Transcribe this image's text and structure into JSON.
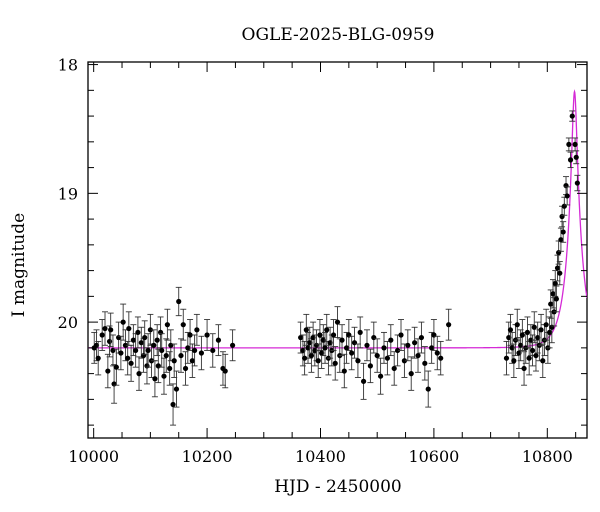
{
  "chart_data": {
    "type": "scatter",
    "title": "OGLE-2025-BLG-0959",
    "xlabel": "HJD - 2450000",
    "ylabel": "I magnitude",
    "xlim": [
      9990,
      10870
    ],
    "ylim": [
      20.9,
      17.98
    ],
    "y_inverted": true,
    "grid": false,
    "x_ticks": [
      10000,
      10200,
      10400,
      10600,
      10800
    ],
    "x_tick_labels": [
      "10000",
      "10200",
      "10400",
      "10600",
      "10800"
    ],
    "y_ticks": [
      18,
      19,
      20
    ],
    "y_tick_labels": [
      "18",
      "19",
      "20"
    ],
    "colors": {
      "data": "#000000",
      "errorbar": "#333333",
      "model": "#d52ad6"
    },
    "model": {
      "baseline": 20.2,
      "peak_time": 10848,
      "peak_mag": 18.21,
      "tE": 25
    },
    "series": [
      {
        "points": [
          [
            10001,
            20.2,
            0.12
          ],
          [
            10005,
            20.18,
            0.12
          ],
          [
            10008,
            20.28,
            0.13
          ],
          [
            10015,
            20.1,
            0.12
          ],
          [
            10020,
            20.05,
            0.13
          ],
          [
            10025,
            20.38,
            0.13
          ],
          [
            10028,
            20.15,
            0.12
          ],
          [
            10030,
            20.06,
            0.13
          ],
          [
            10034,
            20.22,
            0.12
          ],
          [
            10036,
            20.48,
            0.15
          ],
          [
            10040,
            20.35,
            0.14
          ],
          [
            10044,
            20.12,
            0.12
          ],
          [
            10048,
            20.24,
            0.13
          ],
          [
            10052,
            20.0,
            0.14
          ],
          [
            10056,
            20.18,
            0.12
          ],
          [
            10060,
            20.28,
            0.13
          ],
          [
            10062,
            20.05,
            0.13
          ],
          [
            10066,
            20.32,
            0.14
          ],
          [
            10070,
            20.14,
            0.12
          ],
          [
            10074,
            20.22,
            0.13
          ],
          [
            10078,
            20.08,
            0.12
          ],
          [
            10080,
            20.4,
            0.13
          ],
          [
            10084,
            20.16,
            0.12
          ],
          [
            10088,
            20.26,
            0.13
          ],
          [
            10090,
            20.12,
            0.13
          ],
          [
            10094,
            20.34,
            0.14
          ],
          [
            10096,
            20.22,
            0.13
          ],
          [
            10100,
            20.06,
            0.12
          ],
          [
            10102,
            20.3,
            0.13
          ],
          [
            10106,
            20.18,
            0.12
          ],
          [
            10108,
            20.44,
            0.14
          ],
          [
            10112,
            20.14,
            0.12
          ],
          [
            10114,
            20.34,
            0.13
          ],
          [
            10118,
            20.08,
            0.12
          ],
          [
            10120,
            20.22,
            0.13
          ],
          [
            10124,
            20.42,
            0.14
          ],
          [
            10128,
            20.26,
            0.13
          ],
          [
            10130,
            20.02,
            0.12
          ],
          [
            10134,
            20.36,
            0.13
          ],
          [
            10136,
            20.18,
            0.12
          ],
          [
            10140,
            20.64,
            0.16
          ],
          [
            10142,
            20.3,
            0.13
          ],
          [
            10146,
            20.52,
            0.14
          ],
          [
            10150,
            19.84,
            0.11
          ],
          [
            10154,
            20.26,
            0.13
          ],
          [
            10158,
            20.02,
            0.12
          ],
          [
            10162,
            20.36,
            0.13
          ],
          [
            10166,
            20.2,
            0.12
          ],
          [
            10170,
            20.1,
            0.12
          ],
          [
            10174,
            20.3,
            0.13
          ],
          [
            10178,
            20.22,
            0.12
          ],
          [
            10182,
            20.06,
            0.12
          ],
          [
            10190,
            20.24,
            0.13
          ],
          [
            10200,
            20.1,
            0.12
          ],
          [
            10210,
            20.22,
            0.13
          ],
          [
            10220,
            20.14,
            0.12
          ],
          [
            10228,
            20.36,
            0.13
          ],
          [
            10232,
            20.38,
            0.13
          ],
          [
            10245,
            20.18,
            0.12
          ],
          [
            10365,
            20.12,
            0.12
          ],
          [
            10369,
            20.22,
            0.12
          ],
          [
            10372,
            20.28,
            0.13
          ],
          [
            10375,
            20.06,
            0.12
          ],
          [
            10378,
            20.2,
            0.12
          ],
          [
            10381,
            20.16,
            0.12
          ],
          [
            10384,
            20.26,
            0.13
          ],
          [
            10387,
            20.12,
            0.12
          ],
          [
            10390,
            20.22,
            0.12
          ],
          [
            10393,
            20.18,
            0.12
          ],
          [
            10396,
            20.3,
            0.13
          ],
          [
            10399,
            20.1,
            0.12
          ],
          [
            10402,
            20.24,
            0.12
          ],
          [
            10405,
            20.14,
            0.12
          ],
          [
            10408,
            20.2,
            0.12
          ],
          [
            10411,
            20.06,
            0.12
          ],
          [
            10414,
            20.28,
            0.13
          ],
          [
            10417,
            20.16,
            0.12
          ],
          [
            10420,
            20.22,
            0.12
          ],
          [
            10423,
            20.1,
            0.12
          ],
          [
            10426,
            20.32,
            0.13
          ],
          [
            10430,
            20.0,
            0.12
          ],
          [
            10434,
            20.26,
            0.13
          ],
          [
            10438,
            20.14,
            0.12
          ],
          [
            10442,
            20.38,
            0.13
          ],
          [
            10446,
            20.2,
            0.12
          ],
          [
            10450,
            20.1,
            0.12
          ],
          [
            10455,
            20.24,
            0.13
          ],
          [
            10460,
            20.16,
            0.12
          ],
          [
            10466,
            20.3,
            0.13
          ],
          [
            10470,
            20.08,
            0.12
          ],
          [
            10476,
            20.46,
            0.14
          ],
          [
            10482,
            20.18,
            0.12
          ],
          [
            10488,
            20.34,
            0.13
          ],
          [
            10494,
            20.12,
            0.12
          ],
          [
            10500,
            20.26,
            0.13
          ],
          [
            10506,
            20.42,
            0.14
          ],
          [
            10512,
            20.2,
            0.12
          ],
          [
            10518,
            20.28,
            0.13
          ],
          [
            10524,
            20.14,
            0.12
          ],
          [
            10530,
            20.36,
            0.13
          ],
          [
            10536,
            20.22,
            0.12
          ],
          [
            10542,
            20.1,
            0.12
          ],
          [
            10548,
            20.3,
            0.13
          ],
          [
            10554,
            20.18,
            0.12
          ],
          [
            10560,
            20.4,
            0.13
          ],
          [
            10566,
            20.16,
            0.12
          ],
          [
            10572,
            20.26,
            0.13
          ],
          [
            10578,
            20.12,
            0.12
          ],
          [
            10584,
            20.32,
            0.13
          ],
          [
            10590,
            20.52,
            0.14
          ],
          [
            10596,
            20.2,
            0.12
          ],
          [
            10600,
            20.1,
            0.12
          ],
          [
            10606,
            20.24,
            0.13
          ],
          [
            10612,
            20.28,
            0.13
          ],
          [
            10626,
            20.02,
            0.12
          ],
          [
            10728,
            20.28,
            0.13
          ],
          [
            10732,
            20.12,
            0.12
          ],
          [
            10735,
            20.06,
            0.12
          ],
          [
            10738,
            20.2,
            0.12
          ],
          [
            10741,
            20.3,
            0.13
          ],
          [
            10744,
            20.14,
            0.12
          ],
          [
            10747,
            20.02,
            0.12
          ],
          [
            10750,
            20.24,
            0.12
          ],
          [
            10753,
            20.18,
            0.12
          ],
          [
            10756,
            20.1,
            0.12
          ],
          [
            10759,
            20.36,
            0.13
          ],
          [
            10762,
            20.2,
            0.12
          ],
          [
            10765,
            20.08,
            0.12
          ],
          [
            10768,
            20.28,
            0.13
          ],
          [
            10771,
            20.14,
            0.12
          ],
          [
            10774,
            20.22,
            0.12
          ],
          [
            10777,
            20.04,
            0.12
          ],
          [
            10780,
            20.26,
            0.12
          ],
          [
            10783,
            20.12,
            0.12
          ],
          [
            10786,
            20.18,
            0.12
          ],
          [
            10789,
            20.06,
            0.12
          ],
          [
            10792,
            20.3,
            0.13
          ],
          [
            10795,
            20.14,
            0.12
          ],
          [
            10798,
            20.02,
            0.12
          ],
          [
            10801,
            20.2,
            0.12
          ],
          [
            10804,
            20.08,
            0.12
          ],
          [
            10806,
            19.86,
            0.11
          ],
          [
            10808,
            20.04,
            0.12
          ],
          [
            10810,
            19.78,
            0.11
          ],
          [
            10812,
            19.92,
            0.11
          ],
          [
            10814,
            19.7,
            0.1
          ],
          [
            10816,
            19.82,
            0.1
          ],
          [
            10818,
            19.58,
            0.1
          ],
          [
            10820,
            19.46,
            0.09
          ],
          [
            10822,
            19.62,
            0.09
          ],
          [
            10824,
            19.36,
            0.09
          ],
          [
            10826,
            19.18,
            0.08
          ],
          [
            10828,
            19.3,
            0.08
          ],
          [
            10830,
            19.1,
            0.07
          ],
          [
            10833,
            18.94,
            0.07
          ],
          [
            10835,
            19.02,
            0.07
          ],
          [
            10838,
            18.62,
            0.05
          ],
          [
            10841,
            18.74,
            0.06
          ],
          [
            10844,
            18.4,
            0.04
          ],
          [
            10849,
            18.62,
            0.05
          ],
          [
            10851,
            18.72,
            0.05
          ],
          [
            10853,
            18.92,
            0.06
          ]
        ]
      }
    ]
  }
}
